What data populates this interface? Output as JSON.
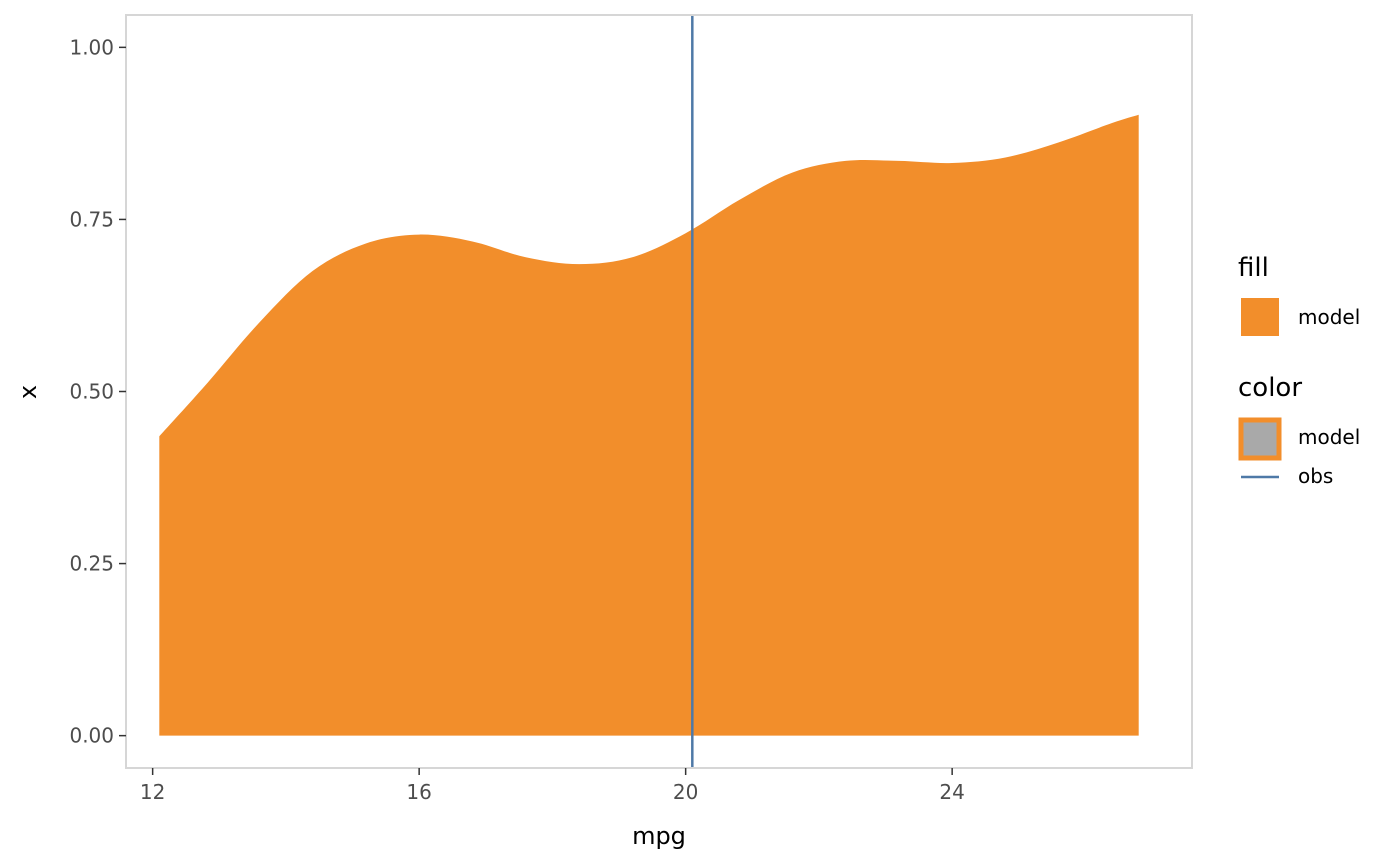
{
  "chart_data": {
    "type": "area",
    "xlabel": "mpg",
    "ylabel": "x",
    "xlim": [
      11.6,
      27.6
    ],
    "ylim": [
      -0.047,
      1.047
    ],
    "x_ticks": [
      12,
      16,
      20,
      24
    ],
    "x_tick_labels": [
      "12",
      "16",
      "20",
      "24"
    ],
    "y_ticks": [
      0,
      0.25,
      0.5,
      0.75,
      1
    ],
    "y_tick_labels": [
      "0.00",
      "0.25",
      "0.50",
      "0.75",
      "1.00"
    ],
    "grid": false,
    "panel_border": true,
    "legend_position": "right",
    "series": [
      {
        "name": "model",
        "kind": "area",
        "fill_color": "#f28e2b",
        "x": [
          12.1,
          12.8,
          13.6,
          14.4,
          15.2,
          16.0,
          16.8,
          17.6,
          18.4,
          19.2,
          20.0,
          20.8,
          21.6,
          22.4,
          23.2,
          24.0,
          24.8,
          25.6,
          26.4,
          26.8
        ],
        "y": [
          0.435,
          0.51,
          0.6,
          0.675,
          0.715,
          0.728,
          0.718,
          0.695,
          0.685,
          0.695,
          0.73,
          0.778,
          0.818,
          0.835,
          0.835,
          0.832,
          0.84,
          0.862,
          0.89,
          0.902
        ]
      },
      {
        "name": "obs",
        "kind": "vline",
        "color": "#4e79a7",
        "x": 20.1
      }
    ],
    "legends": [
      {
        "title": "fill",
        "items": [
          {
            "label": "model",
            "type": "fill",
            "color": "#f28e2b"
          }
        ]
      },
      {
        "title": "color",
        "items": [
          {
            "label": "model",
            "type": "outlined-box",
            "color": "#f28e2b",
            "fill": "#a9a9a9"
          },
          {
            "label": "obs",
            "type": "line",
            "color": "#4e79a7"
          }
        ]
      }
    ]
  }
}
